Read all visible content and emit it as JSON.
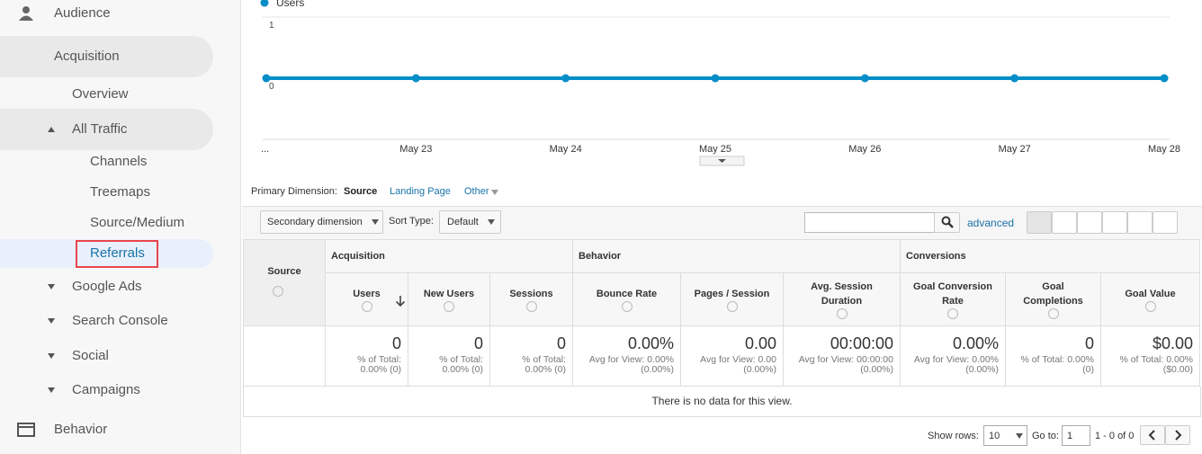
{
  "sidebar": [
    "Audience",
    "Acquisition",
    "Overview",
    "All Traffic",
    "Channels",
    "Treemaps",
    "Source/Medium",
    "Referrals",
    "Google Ads",
    "Search Console",
    "Social",
    "Campaigns",
    "Behavior"
  ],
  "chart_data": {
    "type": "line",
    "x": [
      "...",
      "May 23",
      "May 24",
      "May 25",
      "May 26",
      "May 27",
      "May 28"
    ],
    "series": [
      {
        "name": "Users",
        "color": "#058dc7",
        "values": [
          0,
          0,
          0,
          0,
          0,
          0,
          0
        ]
      }
    ],
    "ylim": [
      -1,
      1
    ],
    "yticks": [
      0,
      1
    ],
    "grid": true
  },
  "dimension": {
    "label": "Primary Dimension:",
    "options": [
      "Source",
      "Landing Page",
      "Other"
    ]
  },
  "toolbar": {
    "secondary": "Secondary dimension",
    "sort_label": "Sort Type:",
    "sort": "Default",
    "advanced": "advanced"
  },
  "table": {
    "source_header": "Source",
    "groups": [
      "Acquisition",
      "Behavior",
      "Conversions"
    ],
    "columns": [
      "Users",
      "New Users",
      "Sessions",
      "Bounce Rate",
      "Pages / Session",
      "Avg. Session Duration",
      "Goal Conversion Rate",
      "Goal Completions",
      "Goal Value"
    ],
    "totals": [
      {
        "value": "0",
        "sub": [
          "% of Total:",
          "0.00% (0)"
        ]
      },
      {
        "value": "0",
        "sub": [
          "% of Total:",
          "0.00% (0)"
        ]
      },
      {
        "value": "0",
        "sub": [
          "% of Total:",
          "0.00% (0)"
        ]
      },
      {
        "value": "0.00%",
        "sub": [
          "Avg for View: 0.00%",
          "(0.00%)"
        ]
      },
      {
        "value": "0.00",
        "sub": [
          "Avg for View: 0.00",
          "(0.00%)"
        ]
      },
      {
        "value": "00:00:00",
        "sub": [
          "Avg for View: 00:00:00",
          "(0.00%)"
        ]
      },
      {
        "value": "0.00%",
        "sub": [
          "Avg for View: 0.00%",
          "(0.00%)"
        ]
      },
      {
        "value": "0",
        "sub": [
          "% of Total: 0.00%",
          "(0)"
        ]
      },
      {
        "value": "$0.00",
        "sub": [
          "% of Total: 0.00%",
          "($0.00)"
        ]
      }
    ],
    "empty": "There is no data for this view."
  },
  "footer": {
    "show_rows": "Show rows:",
    "rows": "10",
    "goto": "Go to:",
    "page": "1",
    "range": "1 - 0 of 0"
  }
}
